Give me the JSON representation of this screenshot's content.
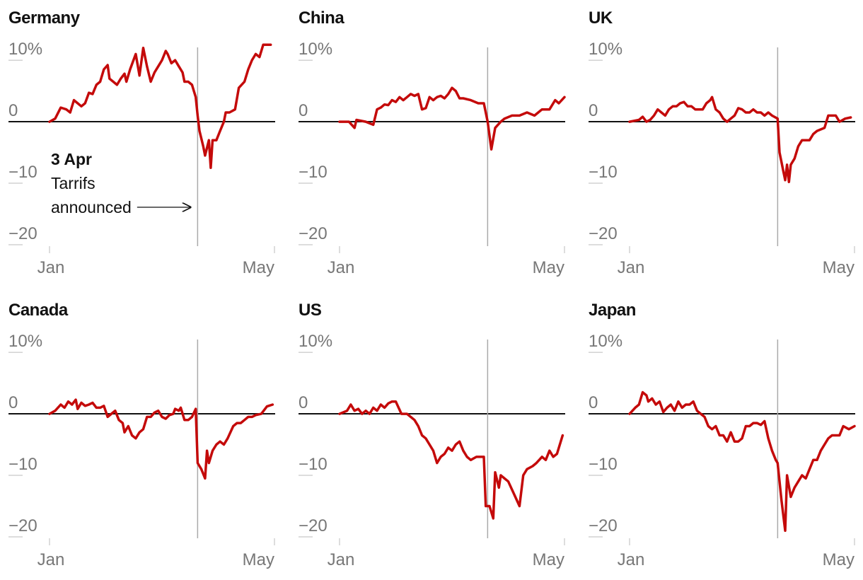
{
  "chart_data": [
    {
      "type": "line",
      "title": "Germany",
      "color": "#c40a0a",
      "x": [
        0,
        3,
        6,
        9,
        11,
        13,
        15,
        17,
        19,
        21,
        23,
        25,
        27,
        29,
        31,
        32,
        34,
        36,
        38,
        40,
        41,
        43,
        46,
        48,
        50,
        52,
        54,
        56,
        58,
        60,
        62,
        63,
        65,
        67,
        69,
        71,
        72,
        74,
        76,
        78,
        79,
        80,
        82,
        83,
        85,
        86,
        87,
        89,
        91,
        93,
        94,
        96,
        99,
        101,
        104,
        106,
        108,
        110,
        112,
        114,
        118
      ],
      "values": [
        0,
        0.5,
        2.3,
        2,
        1.5,
        3.5,
        3,
        2.5,
        3,
        4.7,
        4.5,
        6,
        6.5,
        8.5,
        9.2,
        7,
        6.5,
        6,
        7,
        7.8,
        6.5,
        8.5,
        11,
        7.5,
        12,
        9,
        6.5,
        8,
        9,
        10,
        11.5,
        11,
        9.5,
        10,
        9,
        8,
        6.5,
        6.5,
        6,
        4,
        1,
        -1.5,
        -4,
        -5.5,
        -3,
        -7.5,
        -3,
        -3,
        -1.5,
        0,
        1.5,
        1.5,
        2,
        5.5,
        6.5,
        8.5,
        10,
        11,
        10.5,
        12.5,
        12.5
      ],
      "xlim": [
        0,
        120
      ],
      "xticks": [
        {
          "value": 0,
          "label": "Jan"
        },
        {
          "value": 120,
          "label": "May"
        }
      ],
      "ylim": [
        -20,
        13
      ],
      "yticks": [
        {
          "value": 10,
          "label": "10%"
        },
        0,
        {
          "value": -10,
          "label": "−10"
        },
        {
          "value": -20,
          "label": "−20"
        }
      ],
      "vline": 79,
      "annotation": {
        "date": "3 Apr",
        "text": [
          "Tarrifs",
          "announced"
        ]
      }
    },
    {
      "type": "line",
      "title": "China",
      "color": "#c40a0a",
      "x": [
        0,
        5,
        8,
        9,
        14,
        18,
        20,
        22,
        24,
        26,
        28,
        30,
        32,
        34,
        36,
        38,
        40,
        42,
        44,
        46,
        48,
        50,
        52,
        54,
        56,
        58,
        60,
        62,
        64,
        66,
        70,
        74,
        77,
        79,
        81,
        83,
        86,
        88,
        92,
        96,
        100,
        104,
        108,
        112,
        115,
        117,
        120
      ],
      "values": [
        0,
        0,
        -1,
        0.3,
        0,
        -0.5,
        2,
        2.3,
        2.8,
        2.7,
        3.5,
        3.2,
        4,
        3.5,
        4,
        4.5,
        4.2,
        4.5,
        2,
        2.2,
        4,
        3.5,
        4,
        4.2,
        3.8,
        4.5,
        5.5,
        5,
        3.8,
        3.8,
        3.5,
        3,
        3,
        0,
        -4.5,
        -1,
        0,
        0.5,
        1,
        1,
        1.5,
        1,
        2,
        2,
        3.5,
        3,
        4
      ],
      "xlim": [
        0,
        120
      ],
      "xticks": [
        {
          "value": 0,
          "label": "Jan"
        },
        {
          "value": 120,
          "label": "May"
        }
      ],
      "ylim": [
        -20,
        13
      ],
      "yticks": [
        {
          "value": 10,
          "label": "10%"
        },
        0,
        {
          "value": -10,
          "label": "−10"
        },
        {
          "value": -20,
          "label": "−20"
        }
      ],
      "vline": 79
    },
    {
      "type": "line",
      "title": "UK",
      "color": "#c40a0a",
      "x": [
        0,
        5,
        7,
        9,
        11,
        13,
        15,
        17,
        19,
        21,
        23,
        25,
        27,
        29,
        31,
        33,
        35,
        37,
        39,
        41,
        43,
        44,
        46,
        48,
        50,
        52,
        54,
        56,
        58,
        60,
        62,
        64,
        66,
        68,
        70,
        72,
        74,
        76,
        79,
        80,
        82,
        83,
        84,
        85,
        86,
        88,
        90,
        92,
        96,
        98,
        100,
        104,
        106,
        110,
        112,
        115,
        118
      ],
      "values": [
        0,
        0.3,
        0.8,
        0,
        0.3,
        1,
        2,
        1.5,
        1,
        2,
        2.5,
        2.5,
        3,
        3.2,
        2.5,
        2.5,
        2,
        2,
        2,
        3,
        3.5,
        4,
        2,
        1.5,
        0.5,
        0,
        0.5,
        1,
        2.2,
        2,
        1.5,
        1.5,
        2,
        1.5,
        1.5,
        1,
        1.5,
        1,
        0.5,
        -5,
        -8,
        -9.5,
        -7,
        -9.8,
        -7,
        -6,
        -4,
        -3,
        -3,
        -2,
        -1.5,
        -1,
        1,
        1,
        0,
        0.5,
        0.7
      ],
      "xlim": [
        0,
        120
      ],
      "xticks": [
        {
          "value": 0,
          "label": "Jan"
        },
        {
          "value": 120,
          "label": "May"
        }
      ],
      "ylim": [
        -20,
        13
      ],
      "yticks": [
        {
          "value": 10,
          "label": "10%"
        },
        0,
        {
          "value": -10,
          "label": "−10"
        },
        {
          "value": -20,
          "label": "−20"
        }
      ],
      "vline": 79
    },
    {
      "type": "line",
      "title": "Canada",
      "color": "#c40a0a",
      "x": [
        0,
        3,
        6,
        8,
        10,
        12,
        14,
        15,
        17,
        19,
        21,
        23,
        25,
        27,
        29,
        31,
        33,
        35,
        37,
        39,
        40,
        42,
        44,
        46,
        48,
        50,
        52,
        54,
        56,
        58,
        60,
        62,
        64,
        66,
        67,
        69,
        70,
        72,
        74,
        76,
        78,
        79,
        81,
        83,
        84,
        85,
        87,
        89,
        91,
        93,
        95,
        98,
        100,
        102,
        104,
        106,
        108,
        110,
        113,
        116,
        119
      ],
      "values": [
        0,
        0.5,
        1.5,
        1,
        2,
        1.5,
        2.3,
        0.8,
        1.8,
        1.3,
        1.5,
        1.8,
        1,
        1,
        1.3,
        -0.5,
        0,
        0.5,
        -1,
        -1.5,
        -3,
        -2,
        -3.5,
        -4,
        -3,
        -2.5,
        -0.5,
        -0.5,
        0.2,
        0.5,
        -0.5,
        -0.8,
        -0.2,
        0,
        0.8,
        0.5,
        1,
        -1,
        -1,
        -0.5,
        0.8,
        -8,
        -9,
        -10.5,
        -6,
        -8,
        -6,
        -5,
        -4.5,
        -5,
        -4,
        -2,
        -1.5,
        -1.5,
        -1,
        -0.5,
        -0.5,
        -0.2,
        0,
        1.2,
        1.5
      ],
      "xlim": [
        0,
        120
      ],
      "xticks": [
        {
          "value": 0,
          "label": "Jan"
        },
        {
          "value": 120,
          "label": "May"
        }
      ],
      "ylim": [
        -20,
        13
      ],
      "yticks": [
        {
          "value": 10,
          "label": "10%"
        },
        0,
        {
          "value": -10,
          "label": "−10"
        },
        {
          "value": -20,
          "label": "−20"
        }
      ],
      "vline": 79
    },
    {
      "type": "line",
      "title": "US",
      "color": "#c40a0a",
      "x": [
        0,
        4,
        6,
        8,
        10,
        12,
        14,
        16,
        18,
        20,
        22,
        24,
        26,
        28,
        30,
        33,
        36,
        40,
        42,
        44,
        46,
        48,
        50,
        52,
        54,
        56,
        58,
        60,
        62,
        64,
        66,
        68,
        70,
        73,
        77,
        78,
        80,
        82,
        83,
        85,
        86,
        88,
        90,
        93,
        96,
        98,
        100,
        103,
        105,
        108,
        110,
        112,
        114,
        116,
        119
      ],
      "values": [
        0,
        0.5,
        1.5,
        0.5,
        0.8,
        0,
        0.5,
        0,
        1,
        0.5,
        1.5,
        1,
        1.7,
        2,
        2,
        0,
        0,
        -1,
        -2,
        -3.5,
        -4,
        -5,
        -6,
        -8,
        -7,
        -6.5,
        -5.5,
        -6,
        -5,
        -4.5,
        -6,
        -7,
        -7.5,
        -7,
        -7,
        -15,
        -15,
        -17,
        -9.5,
        -12,
        -10,
        -10.5,
        -11,
        -13,
        -15,
        -10,
        -9,
        -8.5,
        -8,
        -7,
        -7.5,
        -6,
        -7,
        -6.5,
        -3.5
      ],
      "xlim": [
        0,
        120
      ],
      "xticks": [
        {
          "value": 0,
          "label": "Jan"
        },
        {
          "value": 120,
          "label": "May"
        }
      ],
      "ylim": [
        -20,
        13
      ],
      "yticks": [
        {
          "value": 10,
          "label": "10%"
        },
        0,
        {
          "value": -10,
          "label": "−10"
        },
        {
          "value": -20,
          "label": "−20"
        }
      ],
      "vline": 79
    },
    {
      "type": "line",
      "title": "Japan",
      "color": "#c40a0a",
      "x": [
        0,
        3,
        5,
        7,
        9,
        10,
        12,
        14,
        16,
        18,
        20,
        22,
        24,
        26,
        28,
        30,
        32,
        34,
        36,
        38,
        40,
        42,
        44,
        46,
        48,
        50,
        52,
        54,
        56,
        58,
        60,
        62,
        64,
        66,
        68,
        70,
        72,
        74,
        76,
        78,
        79,
        81,
        83,
        84,
        86,
        88,
        90,
        92,
        94,
        96,
        98,
        100,
        102,
        104,
        106,
        108,
        110,
        112,
        114,
        117,
        120
      ],
      "values": [
        0,
        1,
        1.5,
        3.5,
        3,
        2,
        2.5,
        1.5,
        2,
        0.3,
        1,
        1.5,
        0.5,
        2,
        1,
        1.5,
        1.5,
        2,
        0.5,
        0,
        -0.5,
        -2,
        -2.5,
        -2,
        -3.5,
        -3.5,
        -4.5,
        -3,
        -4.5,
        -4.5,
        -4,
        -2,
        -2,
        -1.5,
        -1.5,
        -1.8,
        -1.2,
        -4,
        -6,
        -7.5,
        -8,
        -14,
        -19,
        -10,
        -13.5,
        -12,
        -11,
        -10,
        -10.5,
        -9,
        -7.5,
        -7.5,
        -6,
        -5,
        -4,
        -3.5,
        -3.5,
        -3.5,
        -2,
        -2.5,
        -2
      ],
      "xlim": [
        0,
        120
      ],
      "xticks": [
        {
          "value": 0,
          "label": "Jan"
        },
        {
          "value": 120,
          "label": "May"
        }
      ],
      "ylim": [
        -20,
        13
      ],
      "yticks": [
        {
          "value": 10,
          "label": "10%"
        },
        0,
        {
          "value": -10,
          "label": "−10"
        },
        {
          "value": -20,
          "label": "−20"
        }
      ],
      "vline": 79
    }
  ]
}
